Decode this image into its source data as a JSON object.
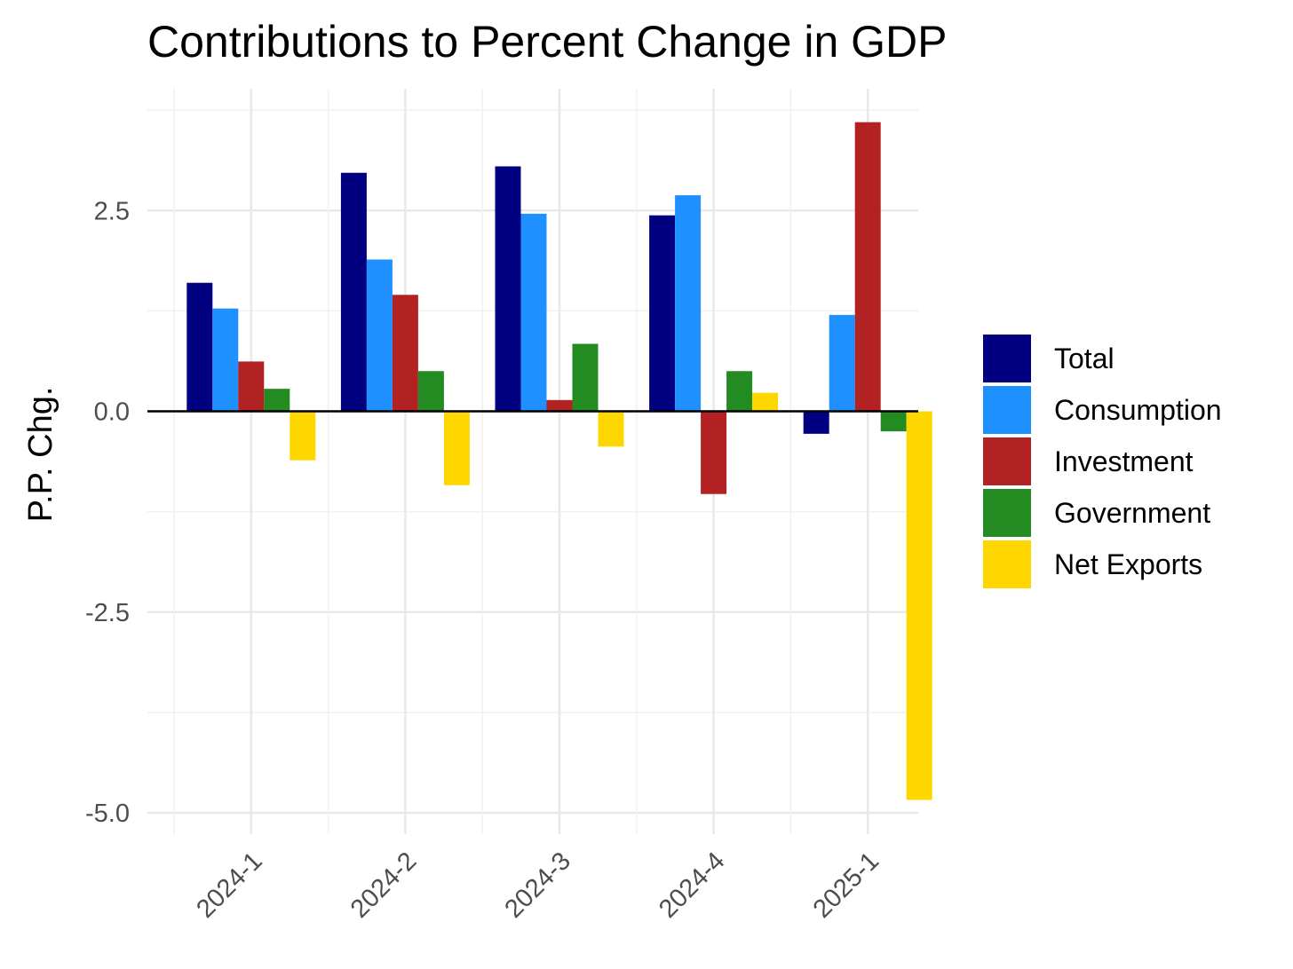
{
  "chart_data": {
    "type": "bar",
    "title": "Contributions to Percent Change in GDP",
    "xlabel": "",
    "ylabel": "P.P. Chg.",
    "categories": [
      "2024-1",
      "2024-2",
      "2024-3",
      "2024-4",
      "2025-1"
    ],
    "series": [
      {
        "name": "Total",
        "color": "#000080",
        "values": [
          1.6,
          2.97,
          3.05,
          2.44,
          -0.28
        ]
      },
      {
        "name": "Consumption",
        "color": "#1e90ff",
        "values": [
          1.28,
          1.89,
          2.46,
          2.69,
          1.2
        ]
      },
      {
        "name": "Investment",
        "color": "#b22222",
        "values": [
          0.62,
          1.45,
          0.14,
          -1.03,
          3.6
        ]
      },
      {
        "name": "Government",
        "color": "#228b22",
        "values": [
          0.28,
          0.5,
          0.84,
          0.5,
          -0.25
        ]
      },
      {
        "name": "Net Exports",
        "color": "#ffd700",
        "values": [
          -0.61,
          -0.92,
          -0.44,
          0.23,
          -4.84
        ]
      }
    ],
    "yticks": [
      -5.0,
      -2.5,
      0.0,
      2.5
    ],
    "ytick_labels": [
      "-5.0",
      "-2.5",
      "0.0",
      "2.5"
    ],
    "ylim": [
      -5.2,
      3.8
    ],
    "grid": true,
    "legend_position": "right"
  }
}
